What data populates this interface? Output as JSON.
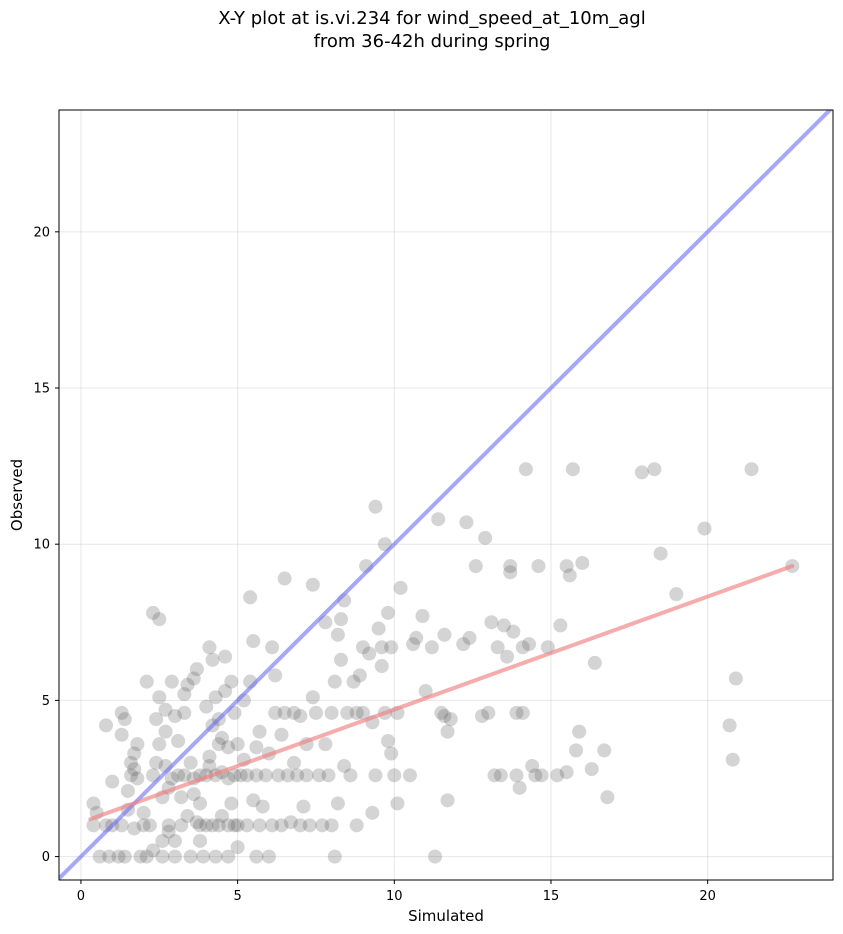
{
  "chart_data": {
    "type": "scatter",
    "title": [
      "X-Y plot at is.vi.234 for wind_speed_at_10m_agl",
      "from 36-42h during spring"
    ],
    "xlabel": "Simulated",
    "ylabel": "Observed",
    "xlim": [
      -0.7,
      24.0
    ],
    "ylim": [
      -0.75,
      23.9
    ],
    "xticks": [
      0,
      5,
      10,
      15,
      20
    ],
    "yticks": [
      0,
      5,
      10,
      15,
      20
    ],
    "grid": true,
    "colors": {
      "points": "#555555",
      "identity_line": "#6b6cf0",
      "fit_line": "#f08080"
    },
    "identity_line": {
      "x": [
        -0.7,
        24.0
      ],
      "y": [
        -0.7,
        24.0
      ]
    },
    "fit_line": {
      "x": [
        0.3,
        22.7
      ],
      "y": [
        1.2,
        9.3
      ]
    },
    "points": [
      [
        0.4,
        1.0
      ],
      [
        0.5,
        1.4
      ],
      [
        0.4,
        1.7
      ],
      [
        0.6,
        0.0
      ],
      [
        0.8,
        1.0
      ],
      [
        0.8,
        4.2
      ],
      [
        0.9,
        0.0
      ],
      [
        1.0,
        2.4
      ],
      [
        1.0,
        1.0
      ],
      [
        1.2,
        0.0
      ],
      [
        1.3,
        1.0
      ],
      [
        1.3,
        3.9
      ],
      [
        1.3,
        4.6
      ],
      [
        1.4,
        4.4
      ],
      [
        1.4,
        0.0
      ],
      [
        1.5,
        1.5
      ],
      [
        1.5,
        2.1
      ],
      [
        1.6,
        3.0
      ],
      [
        1.6,
        2.6
      ],
      [
        1.7,
        2.8
      ],
      [
        1.7,
        3.3
      ],
      [
        1.7,
        0.9
      ],
      [
        1.8,
        2.5
      ],
      [
        1.8,
        3.6
      ],
      [
        1.9,
        0.0
      ],
      [
        2.0,
        1.0
      ],
      [
        2.0,
        1.4
      ],
      [
        2.1,
        5.6
      ],
      [
        2.1,
        0.0
      ],
      [
        2.2,
        1.0
      ],
      [
        2.3,
        2.6
      ],
      [
        2.3,
        0.2
      ],
      [
        2.3,
        7.8
      ],
      [
        2.4,
        3.0
      ],
      [
        2.4,
        4.4
      ],
      [
        2.5,
        7.6
      ],
      [
        2.5,
        5.1
      ],
      [
        2.5,
        3.6
      ],
      [
        2.6,
        0.0
      ],
      [
        2.6,
        1.9
      ],
      [
        2.6,
        0.5
      ],
      [
        2.7,
        4.7
      ],
      [
        2.7,
        4.0
      ],
      [
        2.7,
        2.9
      ],
      [
        2.8,
        1.0
      ],
      [
        2.8,
        0.8
      ],
      [
        2.8,
        2.2
      ],
      [
        2.9,
        5.6
      ],
      [
        2.9,
        2.5
      ],
      [
        3.0,
        0.0
      ],
      [
        3.0,
        4.5
      ],
      [
        3.0,
        0.5
      ],
      [
        3.1,
        3.7
      ],
      [
        3.1,
        2.6
      ],
      [
        3.2,
        1.9
      ],
      [
        3.2,
        1.0
      ],
      [
        3.3,
        4.6
      ],
      [
        3.3,
        5.2
      ],
      [
        3.3,
        2.6
      ],
      [
        3.4,
        1.3
      ],
      [
        3.4,
        5.5
      ],
      [
        3.5,
        0.0
      ],
      [
        3.5,
        3.0
      ],
      [
        3.6,
        2.5
      ],
      [
        3.6,
        2.0
      ],
      [
        3.6,
        5.7
      ],
      [
        3.7,
        6.0
      ],
      [
        3.7,
        1.1
      ],
      [
        3.8,
        1.7
      ],
      [
        3.8,
        1.0
      ],
      [
        3.8,
        0.5
      ],
      [
        3.8,
        2.6
      ],
      [
        3.9,
        0.0
      ],
      [
        4.0,
        2.6
      ],
      [
        4.0,
        1.0
      ],
      [
        4.0,
        4.8
      ],
      [
        4.1,
        3.2
      ],
      [
        4.1,
        6.7
      ],
      [
        4.1,
        2.9
      ],
      [
        4.2,
        1.0
      ],
      [
        4.2,
        4.2
      ],
      [
        4.2,
        6.3
      ],
      [
        4.3,
        0.0
      ],
      [
        4.3,
        2.6
      ],
      [
        4.3,
        5.1
      ],
      [
        4.4,
        3.6
      ],
      [
        4.4,
        1.0
      ],
      [
        4.4,
        4.4
      ],
      [
        4.5,
        2.7
      ],
      [
        4.5,
        3.8
      ],
      [
        4.5,
        1.3
      ],
      [
        4.6,
        6.4
      ],
      [
        4.6,
        5.3
      ],
      [
        4.7,
        0.0
      ],
      [
        4.7,
        1.0
      ],
      [
        4.7,
        3.5
      ],
      [
        4.7,
        2.5
      ],
      [
        4.8,
        5.6
      ],
      [
        4.8,
        1.7
      ],
      [
        4.9,
        4.6
      ],
      [
        4.9,
        1.0
      ],
      [
        4.9,
        2.6
      ],
      [
        5.0,
        0.3
      ],
      [
        5.0,
        3.6
      ],
      [
        5.0,
        1.0
      ],
      [
        5.1,
        2.6
      ],
      [
        5.2,
        5.0
      ],
      [
        5.2,
        3.1
      ],
      [
        5.3,
        1.0
      ],
      [
        5.3,
        2.6
      ],
      [
        5.4,
        8.3
      ],
      [
        5.4,
        5.6
      ],
      [
        5.5,
        6.9
      ],
      [
        5.5,
        1.8
      ],
      [
        5.6,
        0.0
      ],
      [
        5.6,
        3.5
      ],
      [
        5.6,
        2.6
      ],
      [
        5.7,
        1.0
      ],
      [
        5.7,
        4.0
      ],
      [
        5.8,
        1.6
      ],
      [
        5.9,
        2.6
      ],
      [
        6.0,
        0.0
      ],
      [
        6.0,
        3.3
      ],
      [
        6.1,
        6.7
      ],
      [
        6.1,
        1.0
      ],
      [
        6.2,
        4.6
      ],
      [
        6.2,
        5.8
      ],
      [
        6.3,
        2.6
      ],
      [
        6.4,
        1.0
      ],
      [
        6.4,
        3.9
      ],
      [
        6.5,
        8.9
      ],
      [
        6.5,
        4.6
      ],
      [
        6.6,
        2.6
      ],
      [
        6.7,
        1.1
      ],
      [
        6.8,
        3.0
      ],
      [
        6.8,
        4.6
      ],
      [
        6.9,
        2.6
      ],
      [
        7.0,
        1.0
      ],
      [
        7.0,
        4.5
      ],
      [
        7.1,
        1.6
      ],
      [
        7.2,
        3.6
      ],
      [
        7.2,
        2.6
      ],
      [
        7.3,
        1.0
      ],
      [
        7.4,
        5.1
      ],
      [
        7.4,
        8.7
      ],
      [
        7.5,
        4.6
      ],
      [
        7.6,
        2.6
      ],
      [
        7.7,
        1.0
      ],
      [
        7.8,
        7.5
      ],
      [
        7.8,
        3.6
      ],
      [
        7.9,
        2.6
      ],
      [
        8.0,
        4.6
      ],
      [
        8.0,
        1.0
      ],
      [
        8.1,
        0.0
      ],
      [
        8.1,
        5.6
      ],
      [
        8.2,
        7.1
      ],
      [
        8.2,
        1.7
      ],
      [
        8.3,
        6.3
      ],
      [
        8.3,
        7.6
      ],
      [
        8.4,
        8.2
      ],
      [
        8.4,
        2.9
      ],
      [
        8.5,
        4.6
      ],
      [
        8.6,
        2.6
      ],
      [
        8.7,
        5.6
      ],
      [
        8.8,
        1.0
      ],
      [
        8.8,
        4.6
      ],
      [
        8.9,
        5.8
      ],
      [
        9.0,
        6.7
      ],
      [
        9.0,
        4.6
      ],
      [
        9.1,
        9.3
      ],
      [
        9.2,
        6.5
      ],
      [
        9.3,
        1.4
      ],
      [
        9.3,
        4.3
      ],
      [
        9.4,
        11.2
      ],
      [
        9.4,
        2.6
      ],
      [
        9.5,
        7.3
      ],
      [
        9.6,
        6.1
      ],
      [
        9.6,
        6.7
      ],
      [
        9.7,
        4.6
      ],
      [
        9.7,
        10.0
      ],
      [
        9.8,
        7.8
      ],
      [
        9.8,
        3.7
      ],
      [
        9.9,
        3.3
      ],
      [
        9.9,
        6.7
      ],
      [
        10.0,
        2.6
      ],
      [
        10.1,
        4.6
      ],
      [
        10.1,
        1.7
      ],
      [
        10.2,
        8.6
      ],
      [
        10.5,
        2.6
      ],
      [
        10.6,
        6.8
      ],
      [
        10.7,
        7.0
      ],
      [
        10.9,
        7.7
      ],
      [
        11.0,
        5.3
      ],
      [
        11.2,
        6.7
      ],
      [
        11.3,
        0.0
      ],
      [
        11.4,
        10.8
      ],
      [
        11.5,
        4.6
      ],
      [
        11.6,
        4.5
      ],
      [
        11.6,
        7.1
      ],
      [
        11.7,
        4.0
      ],
      [
        11.8,
        4.4
      ],
      [
        11.7,
        1.8
      ],
      [
        12.2,
        6.8
      ],
      [
        12.3,
        10.7
      ],
      [
        12.4,
        7.0
      ],
      [
        12.6,
        9.3
      ],
      [
        12.8,
        4.5
      ],
      [
        12.9,
        10.2
      ],
      [
        13.0,
        4.6
      ],
      [
        13.1,
        7.5
      ],
      [
        13.2,
        2.6
      ],
      [
        13.3,
        6.7
      ],
      [
        13.4,
        2.6
      ],
      [
        13.5,
        7.4
      ],
      [
        13.6,
        6.4
      ],
      [
        13.7,
        9.3
      ],
      [
        13.7,
        9.1
      ],
      [
        13.8,
        7.2
      ],
      [
        13.9,
        4.6
      ],
      [
        13.9,
        2.6
      ],
      [
        14.0,
        2.2
      ],
      [
        14.1,
        4.6
      ],
      [
        14.1,
        6.7
      ],
      [
        14.2,
        12.4
      ],
      [
        14.3,
        6.8
      ],
      [
        14.4,
        2.9
      ],
      [
        14.5,
        2.6
      ],
      [
        14.6,
        9.3
      ],
      [
        14.7,
        2.6
      ],
      [
        14.9,
        6.7
      ],
      [
        15.2,
        2.6
      ],
      [
        15.3,
        7.4
      ],
      [
        15.5,
        2.7
      ],
      [
        15.5,
        9.3
      ],
      [
        15.6,
        9.0
      ],
      [
        15.7,
        12.4
      ],
      [
        15.8,
        3.4
      ],
      [
        15.9,
        4.0
      ],
      [
        16.0,
        9.4
      ],
      [
        16.3,
        2.8
      ],
      [
        16.4,
        6.2
      ],
      [
        16.7,
        3.4
      ],
      [
        16.8,
        1.9
      ],
      [
        17.9,
        12.3
      ],
      [
        18.3,
        12.4
      ],
      [
        18.5,
        9.7
      ],
      [
        19.0,
        8.4
      ],
      [
        19.9,
        10.5
      ],
      [
        20.7,
        4.2
      ],
      [
        20.8,
        3.1
      ],
      [
        20.9,
        5.7
      ],
      [
        21.4,
        12.4
      ],
      [
        22.7,
        9.3
      ]
    ]
  }
}
